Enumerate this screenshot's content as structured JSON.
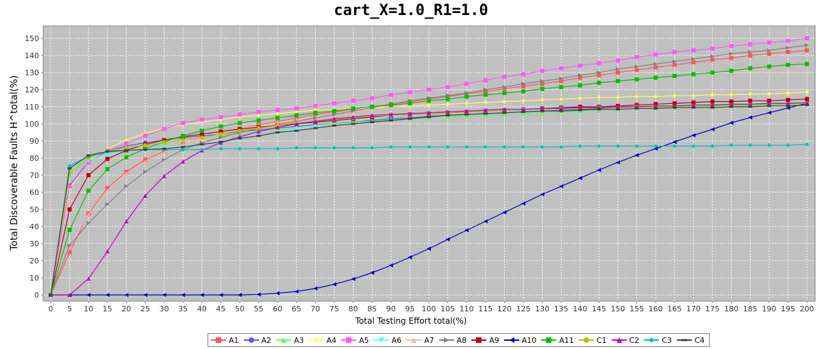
{
  "chart_data": {
    "type": "line",
    "title": "cart_X=1.0_R1=1.0",
    "xlabel": "Total Testing Effort total(%)",
    "ylabel": "Total Discoverable Faults H^total(%)",
    "xlim": [
      0,
      200
    ],
    "ylim": [
      0,
      155
    ],
    "xticks": [
      "0",
      "5",
      "10",
      "15",
      "20",
      "25",
      "30",
      "35",
      "40",
      "45",
      "50",
      "55",
      "60",
      "65",
      "70",
      "75",
      "80",
      "85",
      "90",
      "95",
      "100",
      "105",
      "110",
      "115",
      "120",
      "125",
      "130",
      "135",
      "140",
      "145",
      "150",
      "155",
      "160",
      "165",
      "170",
      "175",
      "180",
      "185",
      "190",
      "195",
      "200"
    ],
    "yticks": [
      "0",
      "10",
      "20",
      "30",
      "40",
      "50",
      "60",
      "70",
      "80",
      "90",
      "100",
      "110",
      "120",
      "130",
      "140",
      "150"
    ],
    "grid": true,
    "legend_position": "bottom",
    "x": [
      0,
      5,
      10,
      15,
      20,
      25,
      30,
      35,
      40,
      45,
      50,
      55,
      60,
      65,
      70,
      75,
      80,
      85,
      90,
      95,
      100,
      105,
      110,
      115,
      120,
      125,
      130,
      135,
      140,
      145,
      150,
      155,
      160,
      165,
      170,
      175,
      180,
      185,
      190,
      195,
      200
    ],
    "series": [
      {
        "name": "A1",
        "color": "#ff5555",
        "marker": "square",
        "values": [
          0,
          25,
          47.5,
          62.5,
          72,
          79,
          84,
          88,
          91.5,
          94.5,
          97,
          99.5,
          101.5,
          103.5,
          105.5,
          107,
          108.5,
          110,
          111.5,
          113,
          114.5,
          116,
          117.5,
          119,
          120.5,
          122,
          123.5,
          125,
          127,
          128.5,
          130,
          131.5,
          133,
          134.5,
          136,
          137.5,
          138.5,
          140,
          141,
          142,
          143
        ]
      },
      {
        "name": "A2",
        "color": "#5555ff",
        "marker": "circle",
        "values": [
          0,
          64,
          78,
          84,
          87,
          89,
          90.5,
          92,
          93,
          94,
          95.5,
          96.5,
          97.5,
          98.5,
          99.5,
          100.5,
          101,
          102,
          103,
          103.5,
          104.5,
          105,
          105.5,
          106,
          106.5,
          107,
          107.5,
          108,
          108.5,
          109,
          109.5,
          110,
          110,
          110.5,
          111,
          111,
          111.5,
          111.5,
          112,
          112,
          112.5
        ]
      },
      {
        "name": "A3",
        "color": "#55ff55",
        "marker": "triangle-up",
        "values": [
          0,
          70.5,
          79.5,
          84,
          86,
          87.5,
          89,
          90.5,
          92,
          93.5,
          95,
          96,
          97,
          98,
          99,
          100,
          101,
          101.5,
          102.5,
          103,
          103.5,
          104,
          104.5,
          105,
          105.5,
          106,
          106.5,
          107,
          107.5,
          108,
          108.5,
          109,
          109,
          109.5,
          110,
          110,
          110.5,
          110.5,
          111,
          111,
          111.5
        ]
      },
      {
        "name": "A4",
        "color": "#ffff55",
        "marker": "diamond",
        "values": [
          0,
          62,
          78,
          85.5,
          90.5,
          94.5,
          97.5,
          99.5,
          101,
          102.5,
          104,
          105,
          106,
          107,
          108,
          108.5,
          109,
          109.5,
          110,
          110.5,
          111,
          111.5,
          112,
          112.5,
          113,
          113.5,
          114,
          114.5,
          115,
          115.5,
          115.5,
          116,
          116,
          116.5,
          116.5,
          117,
          117,
          117.5,
          117.5,
          118,
          118.5
        ]
      },
      {
        "name": "A5",
        "color": "#ff55ff",
        "marker": "square",
        "values": [
          0,
          63.5,
          77.5,
          84.5,
          88.5,
          93,
          97,
          100.5,
          102.5,
          104,
          105.5,
          107,
          108,
          109,
          110.5,
          112,
          113.5,
          115,
          117,
          118.5,
          120,
          121.5,
          123.5,
          125.5,
          127.5,
          129,
          131,
          132.5,
          134,
          135.5,
          137,
          139,
          140.5,
          142,
          143,
          144,
          145.5,
          146.5,
          147.5,
          148.5,
          150
        ]
      },
      {
        "name": "A6",
        "color": "#55ffff",
        "marker": "triangle-down",
        "values": [
          0,
          76,
          78.5,
          82,
          84,
          85,
          86,
          87,
          88,
          89.5,
          91,
          93,
          95,
          97,
          99,
          100.5,
          102,
          103.5,
          104.5,
          105.5,
          106.5,
          107,
          107.5,
          108,
          108.5,
          109,
          109.5,
          110,
          110,
          110.5,
          110.5,
          111,
          111,
          111.5,
          111.5,
          112,
          112,
          112.5,
          112.5,
          113,
          113
        ]
      },
      {
        "name": "A7",
        "color": "#ffafaf",
        "marker": "triangle-up",
        "values": [
          0,
          28,
          47,
          61,
          71,
          78,
          83.5,
          88,
          91.5,
          94.5,
          97,
          99,
          101,
          102.5,
          104,
          105.5,
          107,
          108.5,
          110,
          111.5,
          113,
          114.5,
          116,
          117.5,
          118.5,
          119.5,
          120.5,
          121.5,
          122.5,
          123.5,
          125,
          126,
          127,
          128,
          129,
          130,
          131,
          131.5,
          132.5,
          133,
          133.5
        ]
      },
      {
        "name": "A8",
        "color": "#808080",
        "marker": "triangle-right",
        "values": [
          0,
          29,
          42,
          53,
          63.5,
          72,
          79,
          85,
          89,
          92,
          95,
          97.5,
          99.5,
          101.5,
          103.5,
          105.5,
          107.5,
          109.5,
          111.5,
          113.5,
          115,
          116.5,
          118,
          120,
          121.5,
          123.5,
          125,
          126.5,
          128.5,
          130,
          132,
          133.5,
          135,
          136.5,
          138,
          139.5,
          141,
          142,
          143,
          144.5,
          146
        ]
      },
      {
        "name": "A9",
        "color": "#c00000",
        "marker": "square",
        "values": [
          0,
          50,
          70,
          79.5,
          84.5,
          88,
          90.5,
          92.5,
          94,
          95.5,
          97,
          98,
          99,
          100,
          101,
          102,
          103,
          104,
          105,
          105.5,
          106,
          106.5,
          107,
          107.5,
          108,
          108.5,
          109,
          109.5,
          110,
          110,
          110.5,
          111,
          111.5,
          112,
          112.5,
          113,
          113,
          113.5,
          113.5,
          114,
          114.5
        ]
      },
      {
        "name": "A10",
        "color": "#0000c0",
        "marker": "triangle-left",
        "values": [
          0,
          0,
          0,
          0,
          0,
          0,
          0,
          0,
          0,
          0,
          0,
          0.3,
          1,
          2,
          3.8,
          6.2,
          9.3,
          13,
          17.3,
          22,
          27,
          32.5,
          37.8,
          43,
          48.3,
          53.5,
          58.8,
          63.5,
          68.3,
          73,
          77.5,
          81.7,
          85.5,
          89.4,
          93.3,
          96.8,
          100.6,
          103.7,
          106.5,
          109.3,
          112
        ]
      },
      {
        "name": "A11",
        "color": "#00c000",
        "marker": "square",
        "values": [
          0,
          38,
          61,
          73.5,
          80.5,
          85.5,
          89.5,
          93,
          96,
          98.5,
          100.5,
          102,
          103.5,
          105,
          106.5,
          107.5,
          109,
          110,
          111,
          112,
          113.5,
          114.5,
          116,
          117,
          118,
          119,
          120.5,
          121.5,
          122.5,
          124,
          125,
          126,
          127,
          128,
          129,
          130,
          131,
          132.5,
          133.5,
          134.5,
          135
        ]
      },
      {
        "name": "C1",
        "color": "#c0c000",
        "marker": "circle",
        "values": [
          0,
          71,
          80,
          84,
          86,
          87.5,
          89,
          90.5,
          92,
          94,
          96,
          97.5,
          99,
          100.5,
          101.5,
          102.5,
          103.5,
          104.5,
          105,
          105.5,
          106,
          106.5,
          107,
          107.5,
          108,
          108.5,
          108.5,
          109,
          109,
          109.5,
          109.5,
          110,
          110,
          110,
          110.5,
          110.5,
          111,
          111,
          111.5,
          111.5,
          112
        ]
      },
      {
        "name": "C2",
        "color": "#c000c0",
        "marker": "triangle-up",
        "values": [
          0,
          0,
          9.5,
          25.5,
          43,
          58,
          69.5,
          78,
          84.5,
          89,
          92.5,
          95.5,
          98,
          100,
          101.5,
          103,
          104,
          105,
          105.5,
          106,
          106.5,
          107,
          107.5,
          108,
          108.5,
          108.5,
          109,
          109,
          109.5,
          109.5,
          110,
          110,
          110.5,
          110.5,
          111,
          111,
          111.5,
          111.5,
          112,
          112,
          112.5
        ]
      },
      {
        "name": "C3",
        "color": "#00c0c0",
        "marker": "diamond",
        "values": [
          0,
          75.5,
          81,
          83.5,
          84.5,
          85,
          85,
          85,
          85,
          85.5,
          85.5,
          85.5,
          85.5,
          86,
          86,
          86,
          86,
          86,
          86.5,
          86.5,
          86.5,
          86.5,
          86.5,
          86.5,
          86.5,
          86.5,
          86.5,
          86.5,
          87,
          87,
          87,
          87,
          87,
          87,
          87,
          87,
          87.5,
          87.5,
          87.5,
          87.5,
          88
        ]
      },
      {
        "name": "C4",
        "color": "#404040",
        "marker": "dash",
        "values": [
          0,
          74,
          81.5,
          84,
          84.5,
          85,
          85.5,
          86.5,
          88,
          89.5,
          91.5,
          93,
          95,
          96,
          97.5,
          99,
          100,
          101,
          102,
          103,
          104,
          105,
          105.5,
          106,
          106.5,
          107,
          107.5,
          107.5,
          108,
          108.5,
          108.5,
          109,
          109,
          109.5,
          109.5,
          109.5,
          110,
          110,
          110.5,
          110.5,
          111
        ]
      }
    ]
  }
}
